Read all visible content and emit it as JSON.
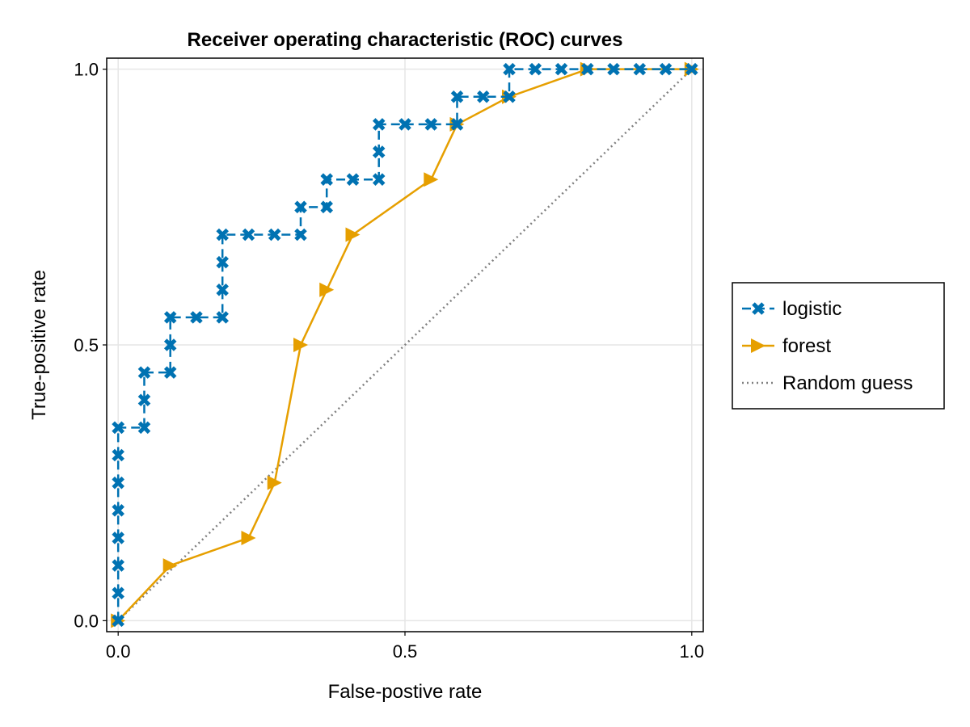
{
  "chart_data": {
    "type": "line",
    "title": "Receiver operating characteristic (ROC) curves",
    "xlabel": "False-postive rate",
    "ylabel": "True-positive rate",
    "xlim": [
      -0.02,
      1.02
    ],
    "ylim": [
      -0.02,
      1.02
    ],
    "xticks": [
      0.0,
      0.5,
      1.0
    ],
    "xtick_labels": [
      "0.0",
      "0.5",
      "1.0"
    ],
    "yticks": [
      0.0,
      0.5,
      1.0
    ],
    "ytick_labels": [
      "0.0",
      "0.5",
      "1.0"
    ],
    "grid": true,
    "legend_position": "right",
    "series": [
      {
        "name": "logistic",
        "color": "#0072b2",
        "line_style": "dashed",
        "marker": "cross",
        "x": [
          0,
          0,
          0,
          0,
          0,
          0,
          0,
          0,
          0,
          0.0455,
          0.0455,
          0.0455,
          0.0909,
          0.0909,
          0.0909,
          0.1364,
          0.1818,
          0.1818,
          0.1818,
          0.1818,
          0.2273,
          0.2727,
          0.3182,
          0.3182,
          0.3636,
          0.3636,
          0.4091,
          0.4545,
          0.4545,
          0.4545,
          0.5,
          0.5455,
          0.5909,
          0.5909,
          0.6364,
          0.6818,
          0.6818,
          0.7273,
          0.7727,
          0.8182,
          0.8636,
          0.9091,
          0.9545,
          1.0
        ],
        "y": [
          0,
          0.05,
          0.1,
          0.15,
          0.2,
          0.25,
          0.3,
          0.35,
          0.35,
          0.35,
          0.4,
          0.45,
          0.45,
          0.5,
          0.55,
          0.55,
          0.55,
          0.6,
          0.65,
          0.7,
          0.7,
          0.7,
          0.7,
          0.75,
          0.75,
          0.8,
          0.8,
          0.8,
          0.85,
          0.9,
          0.9,
          0.9,
          0.9,
          0.95,
          0.95,
          0.95,
          1.0,
          1.0,
          1.0,
          1.0,
          1.0,
          1.0,
          1.0,
          1.0
        ]
      },
      {
        "name": "forest",
        "color": "#e69f00",
        "line_style": "solid",
        "marker": "triangle-right",
        "x": [
          0,
          0.0909,
          0.2273,
          0.2727,
          0.3182,
          0.3636,
          0.4091,
          0.5455,
          0.5909,
          0.6818,
          0.8182,
          1.0
        ],
        "y": [
          0,
          0.1,
          0.15,
          0.25,
          0.5,
          0.6,
          0.7,
          0.8,
          0.9,
          0.95,
          1.0,
          1.0
        ]
      },
      {
        "name": "Random guess",
        "color": "#808080",
        "line_style": "dotted",
        "marker": "none",
        "x": [
          0,
          1
        ],
        "y": [
          0,
          1
        ]
      }
    ]
  }
}
